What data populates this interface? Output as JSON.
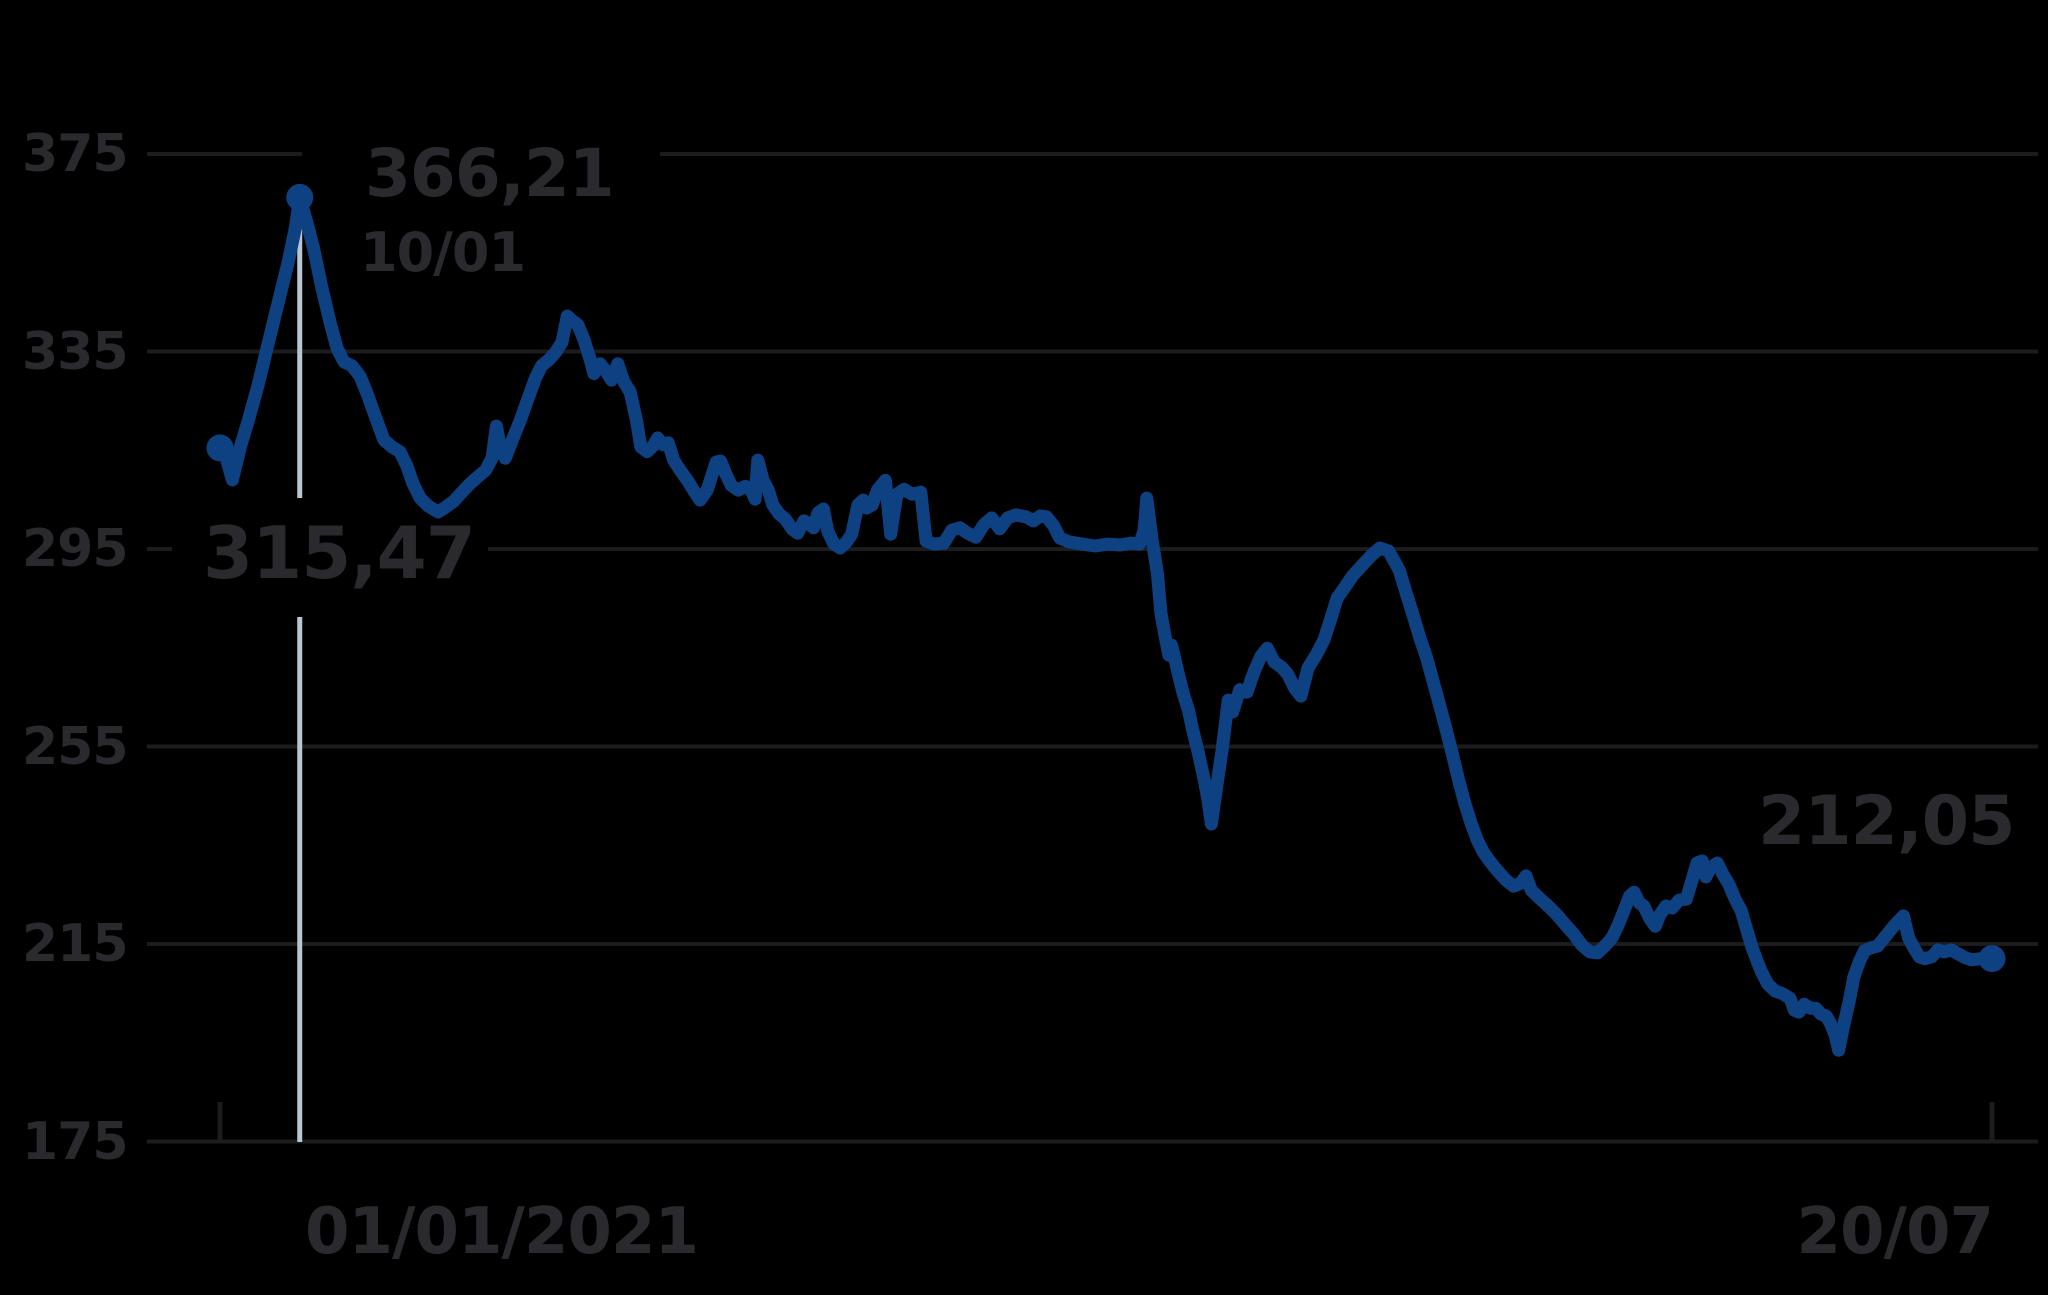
{
  "meta": {
    "background_color": "#000000",
    "text_color": "#2a2a2e",
    "grid_color": "#1c1c1e",
    "line_color": "#0e4181",
    "reference_line_color": "#b9c6d1"
  },
  "chart_data": {
    "type": "line",
    "title": "",
    "legend": "none",
    "grid": true,
    "y_axis": {
      "tick_labels": [
        "375",
        "335",
        "295",
        "255",
        "215",
        "175"
      ],
      "tick_values": [
        375,
        335,
        295,
        255,
        215,
        175
      ],
      "range": [
        175,
        375
      ]
    },
    "x_axis": {
      "ticks": [
        {
          "label": "01/01/2021",
          "day": 0
        },
        {
          "label": "20/07",
          "day": 200
        }
      ],
      "range_days": [
        0,
        200
      ]
    },
    "annotations": {
      "peak": {
        "value_label": "366,21",
        "date_label": "10/01",
        "day": 9,
        "value": 366.21
      },
      "start": {
        "value_label": "315,47",
        "day": 0,
        "value": 315.47
      },
      "end": {
        "value_label": "212,05",
        "day": 200,
        "value": 212.05
      }
    },
    "markers": [
      {
        "name": "start-point",
        "day": 0,
        "value": 315.47
      },
      {
        "name": "peak-point",
        "day": 9,
        "value": 366.21
      },
      {
        "name": "end-point",
        "day": 200,
        "value": 212.05
      }
    ],
    "series": [
      {
        "name": "price",
        "color": "#0e4181",
        "points": [
          [
            0,
            315.47
          ],
          [
            0.7,
            313.4
          ],
          [
            1.4,
            309.0
          ],
          [
            2.3,
            315.7
          ],
          [
            3.2,
            321.1
          ],
          [
            4.3,
            328.2
          ],
          [
            5.4,
            336.3
          ],
          [
            6.5,
            344.4
          ],
          [
            7.7,
            353.1
          ],
          [
            8.5,
            360.0
          ],
          [
            9,
            366.21
          ],
          [
            9.8,
            361.2
          ],
          [
            10.6,
            355.6
          ],
          [
            11.5,
            347.9
          ],
          [
            12.4,
            341.0
          ],
          [
            13.2,
            335.7
          ],
          [
            14,
            332.9
          ],
          [
            14.9,
            332.1
          ],
          [
            15.8,
            330.0
          ],
          [
            16.7,
            326.0
          ],
          [
            17.6,
            321.5
          ],
          [
            18.5,
            317.1
          ],
          [
            19.4,
            315.7
          ],
          [
            20.3,
            314.7
          ],
          [
            21.1,
            311.8
          ],
          [
            21.8,
            308.2
          ],
          [
            22.6,
            305.3
          ],
          [
            23.5,
            303.7
          ],
          [
            24.6,
            302.5
          ],
          [
            25.5,
            303.5
          ],
          [
            26.4,
            304.7
          ],
          [
            27.3,
            306.5
          ],
          [
            28.2,
            308.2
          ],
          [
            29.1,
            309.6
          ],
          [
            30,
            311.0
          ],
          [
            30.7,
            313.4
          ],
          [
            31.2,
            319.9
          ],
          [
            31.7,
            315.1
          ],
          [
            32.2,
            313.4
          ],
          [
            33,
            317.1
          ],
          [
            33.9,
            321.1
          ],
          [
            34.8,
            325.6
          ],
          [
            35.6,
            329.6
          ],
          [
            36.3,
            332.1
          ],
          [
            37.1,
            333.3
          ],
          [
            37.9,
            334.9
          ],
          [
            38.6,
            336.9
          ],
          [
            39.2,
            342.2
          ],
          [
            39.8,
            341.2
          ],
          [
            40.4,
            340.4
          ],
          [
            41.1,
            337.3
          ],
          [
            41.8,
            333.3
          ],
          [
            42.2,
            330.5
          ],
          [
            42.9,
            332.5
          ],
          [
            43.6,
            330.9
          ],
          [
            44.2,
            329.2
          ],
          [
            44.9,
            332.5
          ],
          [
            45.6,
            328.8
          ],
          [
            46.3,
            326.8
          ],
          [
            47,
            321.1
          ],
          [
            47.5,
            315.7
          ],
          [
            48.2,
            314.7
          ],
          [
            48.9,
            315.9
          ],
          [
            49.4,
            317.5
          ],
          [
            50,
            316.1
          ],
          [
            50.6,
            316.5
          ],
          [
            51.2,
            313.0
          ],
          [
            52,
            310.8
          ],
          [
            52.8,
            308.8
          ],
          [
            53.5,
            306.7
          ],
          [
            54.2,
            304.9
          ],
          [
            55,
            307.0
          ],
          [
            55.5,
            309.8
          ],
          [
            56,
            312.6
          ],
          [
            56.5,
            312.8
          ],
          [
            57.1,
            310.2
          ],
          [
            57.7,
            307.9
          ],
          [
            58.5,
            306.9
          ],
          [
            59.3,
            307.7
          ],
          [
            59.9,
            307.1
          ],
          [
            60.4,
            305.1
          ],
          [
            60.7,
            313.0
          ],
          [
            61.3,
            308.9
          ],
          [
            61.9,
            306.9
          ],
          [
            62.4,
            303.9
          ],
          [
            63.1,
            302.1
          ],
          [
            63.8,
            301.1
          ],
          [
            64.6,
            299.0
          ],
          [
            65.2,
            298.2
          ],
          [
            65.9,
            300.7
          ],
          [
            66.5,
            300.1
          ],
          [
            67,
            299.3
          ],
          [
            67.5,
            302.3
          ],
          [
            68.1,
            303.1
          ],
          [
            68.6,
            298.6
          ],
          [
            69.3,
            296.0
          ],
          [
            70,
            295.2
          ],
          [
            70.7,
            296.4
          ],
          [
            71.3,
            298.0
          ],
          [
            72,
            303.9
          ],
          [
            72.6,
            304.9
          ],
          [
            73,
            303.3
          ],
          [
            73.6,
            303.9
          ],
          [
            74.2,
            306.9
          ],
          [
            75.1,
            308.9
          ],
          [
            75.7,
            298.0
          ],
          [
            76.4,
            306.1
          ],
          [
            77.2,
            307.1
          ],
          [
            78.1,
            306.1
          ],
          [
            79.1,
            306.5
          ],
          [
            79.7,
            296.6
          ],
          [
            80.6,
            296.0
          ],
          [
            81.7,
            296.2
          ],
          [
            82.6,
            298.8
          ],
          [
            83.5,
            299.3
          ],
          [
            84.4,
            298.2
          ],
          [
            85.3,
            297.4
          ],
          [
            86.2,
            299.9
          ],
          [
            87.1,
            301.3
          ],
          [
            88,
            299.1
          ],
          [
            88.9,
            301.3
          ],
          [
            89.8,
            301.9
          ],
          [
            91,
            301.5
          ],
          [
            91.8,
            300.7
          ],
          [
            92.6,
            301.7
          ],
          [
            93.3,
            301.5
          ],
          [
            94.1,
            299.7
          ],
          [
            94.8,
            297.2
          ],
          [
            95.9,
            296.4
          ],
          [
            97.3,
            296.0
          ],
          [
            98.8,
            295.6
          ],
          [
            100.2,
            296.0
          ],
          [
            101.6,
            295.8
          ],
          [
            102.8,
            296.2
          ],
          [
            103.8,
            296.0
          ],
          [
            104.3,
            298.8
          ],
          [
            104.6,
            305.3
          ],
          [
            105.2,
            296.8
          ],
          [
            105.8,
            290.1
          ],
          [
            106.2,
            282.0
          ],
          [
            106.7,
            277.0
          ],
          [
            107.1,
            273.5
          ],
          [
            107.4,
            275.5
          ],
          [
            108,
            270.9
          ],
          [
            108.7,
            265.8
          ],
          [
            109.3,
            262.4
          ],
          [
            109.8,
            258.3
          ],
          [
            110.4,
            253.9
          ],
          [
            111.1,
            248.2
          ],
          [
            111.5,
            244.2
          ],
          [
            111.9,
            239.3
          ],
          [
            112.5,
            247.0
          ],
          [
            113.1,
            254.3
          ],
          [
            113.8,
            264.4
          ],
          [
            114.3,
            262.0
          ],
          [
            115.1,
            266.5
          ],
          [
            115.9,
            266.0
          ],
          [
            116.7,
            270.1
          ],
          [
            117.5,
            273.3
          ],
          [
            118.2,
            274.9
          ],
          [
            119,
            272.1
          ],
          [
            119.8,
            271.1
          ],
          [
            120.5,
            269.7
          ],
          [
            121.3,
            266.8
          ],
          [
            122,
            265.2
          ],
          [
            122.8,
            270.9
          ],
          [
            123.7,
            273.5
          ],
          [
            124.6,
            276.6
          ],
          [
            125.4,
            281.0
          ],
          [
            126.1,
            285.1
          ],
          [
            126.9,
            287.1
          ],
          [
            127.8,
            289.5
          ],
          [
            128.8,
            291.5
          ],
          [
            129.9,
            293.6
          ],
          [
            130.9,
            295.2
          ],
          [
            131.9,
            294.6
          ],
          [
            133.1,
            290.7
          ],
          [
            133.9,
            285.9
          ],
          [
            134.7,
            281.4
          ],
          [
            135.4,
            277.2
          ],
          [
            136.2,
            272.9
          ],
          [
            137,
            267.7
          ],
          [
            137.8,
            262.4
          ],
          [
            138.5,
            257.7
          ],
          [
            139.2,
            252.7
          ],
          [
            139.8,
            248.2
          ],
          [
            140.5,
            243.5
          ],
          [
            141.2,
            239.5
          ],
          [
            141.9,
            236.1
          ],
          [
            142.6,
            233.6
          ],
          [
            143.3,
            231.8
          ],
          [
            144.2,
            229.8
          ],
          [
            145.1,
            228.0
          ],
          [
            146,
            226.7
          ],
          [
            146.8,
            227.3
          ],
          [
            147.4,
            228.8
          ],
          [
            148,
            225.9
          ],
          [
            148.9,
            224.3
          ],
          [
            149.9,
            222.7
          ],
          [
            150.9,
            220.9
          ],
          [
            151.9,
            218.8
          ],
          [
            152.8,
            217.0
          ],
          [
            153.7,
            214.8
          ],
          [
            154.6,
            213.4
          ],
          [
            155.5,
            213.2
          ],
          [
            156.3,
            214.6
          ],
          [
            157.1,
            216.2
          ],
          [
            157.8,
            218.8
          ],
          [
            158.5,
            221.9
          ],
          [
            159.1,
            224.7
          ],
          [
            159.6,
            225.5
          ],
          [
            160.2,
            223.3
          ],
          [
            160.7,
            222.7
          ],
          [
            161.4,
            220.1
          ],
          [
            162,
            218.6
          ],
          [
            162.5,
            220.9
          ],
          [
            163.2,
            222.7
          ],
          [
            163.9,
            222.3
          ],
          [
            164.7,
            223.9
          ],
          [
            165.5,
            224.1
          ],
          [
            166,
            227.1
          ],
          [
            166.7,
            231.4
          ],
          [
            167.3,
            231.8
          ],
          [
            167.7,
            228.6
          ],
          [
            168.2,
            230.4
          ],
          [
            169,
            231.4
          ],
          [
            169.6,
            229.2
          ],
          [
            170.3,
            227.1
          ],
          [
            171,
            224.1
          ],
          [
            171.7,
            221.7
          ],
          [
            172.3,
            218.0
          ],
          [
            172.9,
            214.4
          ],
          [
            173.5,
            211.5
          ],
          [
            174,
            209.3
          ],
          [
            174.7,
            206.9
          ],
          [
            175.5,
            205.5
          ],
          [
            176.4,
            204.9
          ],
          [
            177.2,
            204.0
          ],
          [
            177.7,
            201.6
          ],
          [
            178.2,
            201.2
          ],
          [
            178.8,
            202.8
          ],
          [
            179.5,
            202.0
          ],
          [
            180.1,
            202.0
          ],
          [
            180.7,
            200.8
          ],
          [
            181.3,
            200.4
          ],
          [
            181.8,
            198.8
          ],
          [
            182.3,
            196.5
          ],
          [
            182.7,
            193.5
          ],
          [
            183.3,
            198.8
          ],
          [
            183.9,
            203.6
          ],
          [
            184.4,
            208.3
          ],
          [
            185,
            211.3
          ],
          [
            185.6,
            213.6
          ],
          [
            186.3,
            214.2
          ],
          [
            187.1,
            214.6
          ],
          [
            188,
            216.6
          ],
          [
            188.9,
            218.6
          ],
          [
            190,
            220.7
          ],
          [
            190.6,
            216.2
          ],
          [
            191.2,
            214.2
          ],
          [
            191.8,
            212.4
          ],
          [
            192.4,
            212.0
          ],
          [
            193.2,
            212.4
          ],
          [
            193.9,
            213.8
          ],
          [
            194.6,
            213.4
          ],
          [
            195.4,
            213.8
          ],
          [
            196.2,
            213.0
          ],
          [
            197,
            212.2
          ],
          [
            197.7,
            211.8
          ],
          [
            198.6,
            212.0
          ],
          [
            200,
            212.05
          ]
        ]
      }
    ]
  }
}
